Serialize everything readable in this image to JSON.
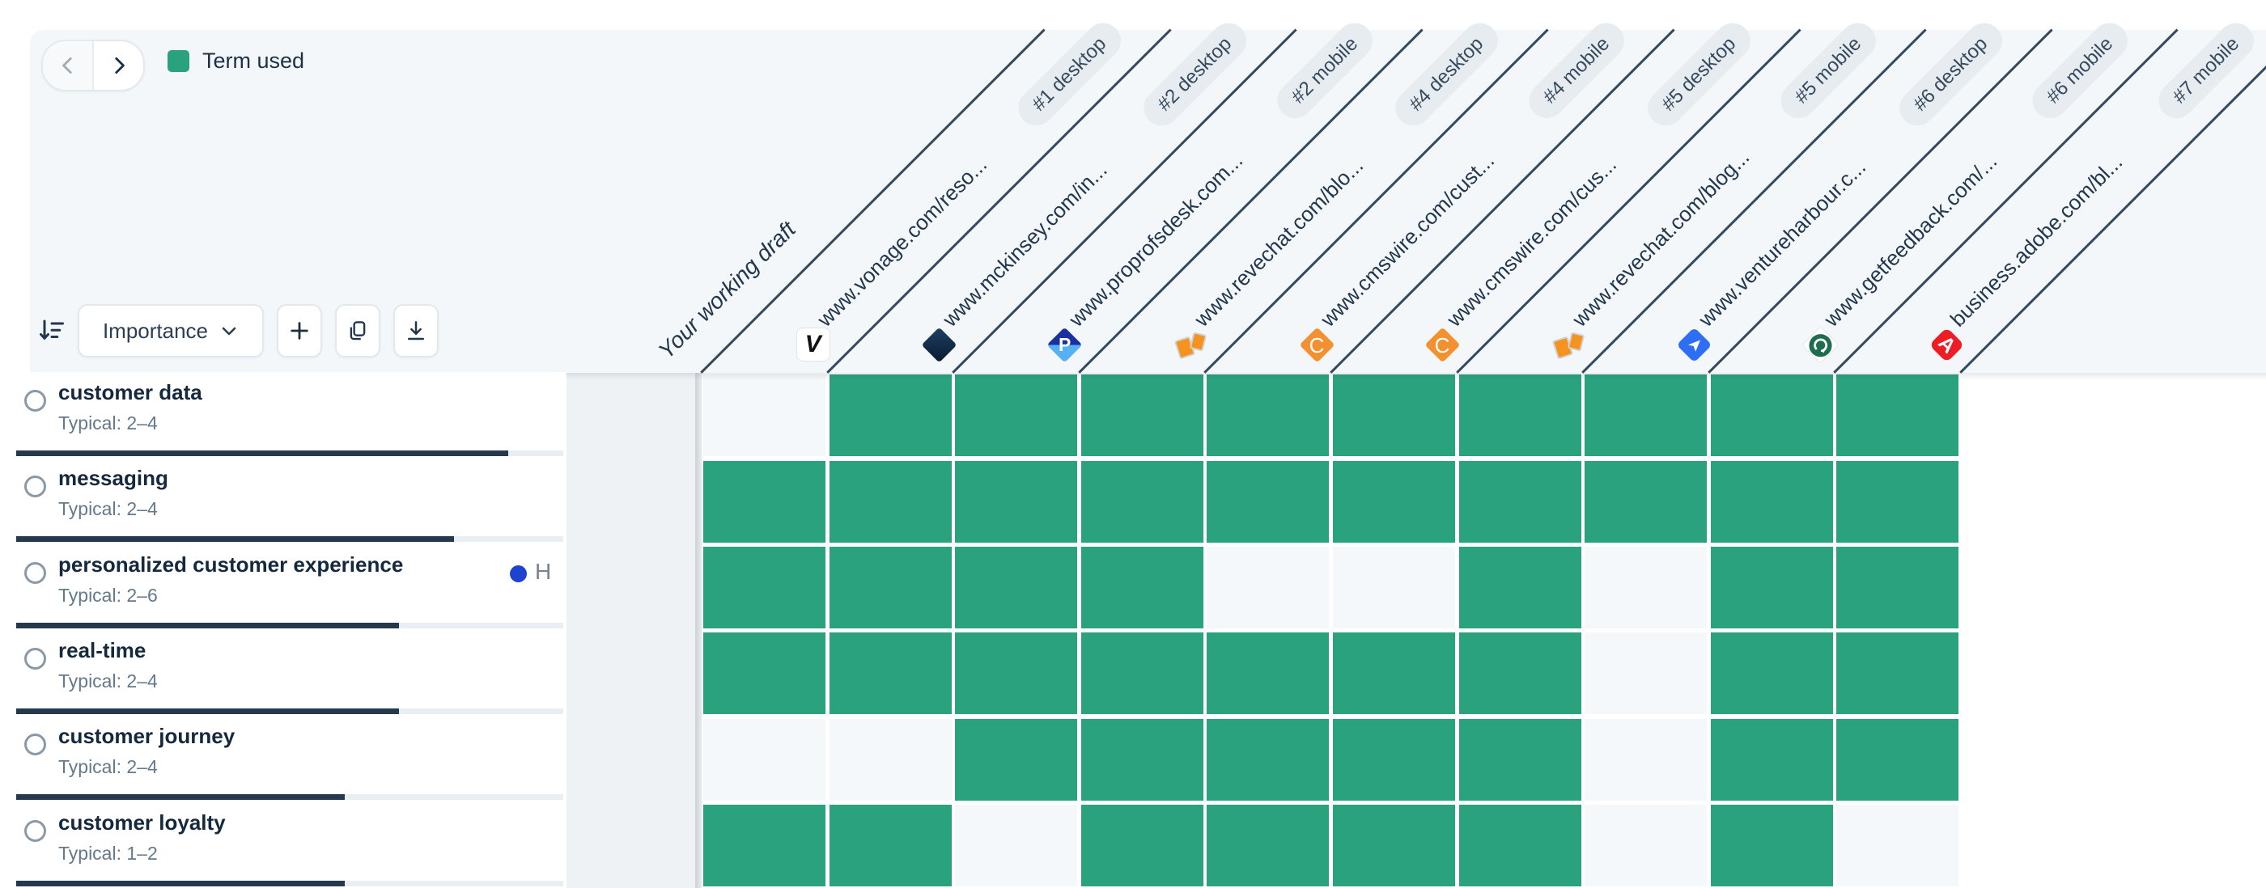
{
  "legend": {
    "label": "Term used",
    "color": "#2ba27e"
  },
  "nav": {
    "prev_enabled": false,
    "next_enabled": true
  },
  "toolbar": {
    "sort_label": "Importance"
  },
  "colors": {
    "term_used": "#2ba27e",
    "term_unused": "#f4f8fa",
    "importance_fill": "#24384e",
    "header_bg": "#f3f7f9",
    "line": "#33495f",
    "tag_blue": "#1e43cf"
  },
  "columns": [
    {
      "label": "Your working draft",
      "type": "draft",
      "badge": "",
      "favicon": "",
      "cells_visible": true
    },
    {
      "label": "www.vonage.com/reso...",
      "type": "url",
      "badge": "#1 desktop",
      "favicon": "vonage",
      "cells_visible": true
    },
    {
      "label": "www.mckinsey.com/in...",
      "type": "url",
      "badge": "#2 desktop",
      "favicon": "mckinsey",
      "cells_visible": true
    },
    {
      "label": "www.proprofsdesk.com...",
      "type": "url",
      "badge": "#2 mobile",
      "favicon": "proprofs",
      "cells_visible": true
    },
    {
      "label": "www.revechat.com/blo...",
      "type": "url",
      "badge": "#4 desktop",
      "favicon": "revechat",
      "cells_visible": true
    },
    {
      "label": "www.cmswire.com/cust...",
      "type": "url",
      "badge": "#4 mobile",
      "favicon": "cmswire",
      "cells_visible": true
    },
    {
      "label": "www.cmswire.com/cus...",
      "type": "url",
      "badge": "#5 desktop",
      "favicon": "cmswire",
      "cells_visible": true
    },
    {
      "label": "www.revechat.com/blog...",
      "type": "url",
      "badge": "#5 mobile",
      "favicon": "revechat",
      "cells_visible": true
    },
    {
      "label": "www.ventureharbour.c...",
      "type": "url",
      "badge": "#6 desktop",
      "favicon": "ventureharbour",
      "cells_visible": true
    },
    {
      "label": "www.getfeedback.com/...",
      "type": "url",
      "badge": "#6 mobile",
      "favicon": "getfeedback",
      "cells_visible": true
    },
    {
      "label": "business.adobe.com/bl...",
      "type": "url",
      "badge": "#7 mobile",
      "favicon": "adobe",
      "cells_visible": false
    }
  ],
  "terms": [
    {
      "term": "customer data",
      "typical": "Typical: 2–4",
      "importance_pct": 90
    },
    {
      "term": "messaging",
      "typical": "Typical: 2–4",
      "importance_pct": 80
    },
    {
      "term": "personalized customer experience",
      "typical": "Typical: 2–6",
      "importance_pct": 70,
      "tag": "H"
    },
    {
      "term": "real-time",
      "typical": "Typical: 2–4",
      "importance_pct": 70
    },
    {
      "term": "customer journey",
      "typical": "Typical: 2–4",
      "importance_pct": 60
    },
    {
      "term": "customer loyalty",
      "typical": "Typical: 1–2",
      "importance_pct": 60
    }
  ],
  "matrix": [
    [
      0,
      1,
      1,
      1,
      1,
      1,
      1,
      1,
      1,
      1
    ],
    [
      1,
      1,
      1,
      1,
      1,
      1,
      1,
      1,
      1,
      1
    ],
    [
      1,
      1,
      1,
      1,
      0,
      0,
      1,
      0,
      1,
      1
    ],
    [
      1,
      1,
      1,
      1,
      1,
      1,
      1,
      0,
      1,
      1
    ],
    [
      0,
      0,
      1,
      1,
      1,
      1,
      1,
      0,
      1,
      1
    ],
    [
      1,
      1,
      0,
      1,
      1,
      1,
      1,
      0,
      1,
      0
    ]
  ]
}
